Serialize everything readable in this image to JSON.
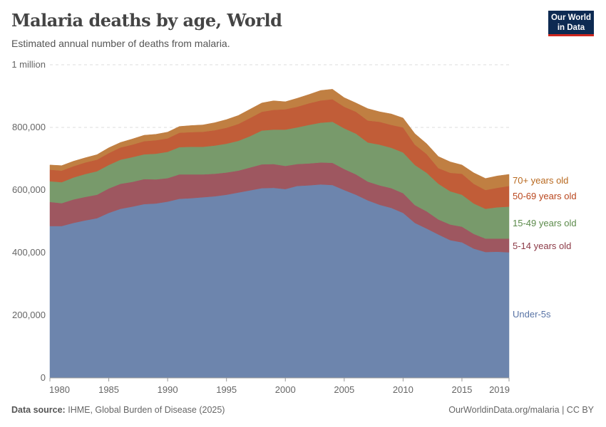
{
  "header": {
    "title": "Malaria deaths by age, World",
    "subtitle": "Estimated annual number of deaths from malaria."
  },
  "logo": {
    "line1": "Our World",
    "line2": "in Data",
    "bg": "#0d2a52",
    "accent": "#ce261e"
  },
  "footer": {
    "source_label": "Data source:",
    "source": "IHME, Global Burden of Disease (2025)",
    "credit": "OurWorldinData.org/malaria | CC BY"
  },
  "chart_data": {
    "type": "area",
    "stacked": true,
    "title": "Malaria deaths by age, World",
    "subtitle": "Estimated annual number of deaths from malaria.",
    "ylim": [
      0,
      1000000
    ],
    "y_ticks": [
      {
        "v": 0,
        "label": "0"
      },
      {
        "v": 200000,
        "label": "200,000"
      },
      {
        "v": 400000,
        "label": "400,000"
      },
      {
        "v": 600000,
        "label": "600,000"
      },
      {
        "v": 800000,
        "label": "800,000"
      },
      {
        "v": 1000000,
        "label": "1 million"
      }
    ],
    "x_ticks": [
      1980,
      1985,
      1990,
      1995,
      2000,
      2005,
      2010,
      2015,
      2019
    ],
    "grid": "horizontal dashed",
    "legend": "right, inline labels",
    "x": [
      1980,
      1981,
      1982,
      1983,
      1984,
      1985,
      1986,
      1987,
      1988,
      1989,
      1990,
      1991,
      1992,
      1993,
      1994,
      1995,
      1996,
      1997,
      1998,
      1999,
      2000,
      2001,
      2002,
      2003,
      2004,
      2005,
      2006,
      2007,
      2008,
      2009,
      2010,
      2011,
      2012,
      2013,
      2014,
      2015,
      2016,
      2017,
      2018,
      2019
    ],
    "series": [
      {
        "name": "Under-5s",
        "color": "#6d85ad",
        "label_color": "#5873a5",
        "values": [
          485000,
          485000,
          495000,
          503000,
          510000,
          527000,
          540000,
          547000,
          555000,
          557000,
          563000,
          572000,
          574000,
          577000,
          580000,
          585000,
          592000,
          599000,
          606000,
          607000,
          603000,
          613000,
          615000,
          618000,
          616000,
          600000,
          585000,
          567000,
          553000,
          543000,
          527000,
          495000,
          477000,
          458000,
          440000,
          433000,
          413000,
          402000,
          403000,
          401000
        ]
      },
      {
        "name": "5-14 years old",
        "color": "#9e5760",
        "label_color": "#8c3a47",
        "values": [
          77000,
          73000,
          75000,
          75000,
          75000,
          78000,
          80000,
          79000,
          80000,
          77000,
          75000,
          78000,
          76000,
          73000,
          72000,
          71000,
          70000,
          73000,
          76000,
          76000,
          74000,
          70000,
          70000,
          70000,
          71000,
          67000,
          65000,
          60000,
          62000,
          63000,
          63000,
          57000,
          55000,
          48000,
          50000,
          50000,
          47000,
          43000,
          42000,
          44000
        ]
      },
      {
        "name": "15-49 years old",
        "color": "#789a6b",
        "label_color": "#5b8a4a",
        "values": [
          66000,
          67000,
          70000,
          73000,
          75000,
          75000,
          77000,
          79000,
          79000,
          82000,
          84000,
          87000,
          88000,
          88000,
          90000,
          92000,
          95000,
          100000,
          108000,
          110000,
          116000,
          117000,
          123000,
          127000,
          131000,
          130000,
          130000,
          125000,
          130000,
          129000,
          130000,
          128000,
          123000,
          114000,
          106000,
          102000,
          97000,
          95000,
          100000,
          102000
        ]
      },
      {
        "name": "50-69 years old",
        "color": "#c15d38",
        "label_color": "#b9461d",
        "values": [
          37000,
          37000,
          36000,
          37000,
          37000,
          38000,
          39000,
          40000,
          42000,
          43000,
          43000,
          46000,
          47000,
          48000,
          49000,
          51000,
          54000,
          58000,
          60000,
          63000,
          65000,
          66000,
          69000,
          71000,
          72000,
          69000,
          70000,
          70000,
          73000,
          73000,
          80000,
          65000,
          60000,
          50000,
          59000,
          67000,
          63000,
          60000,
          62000,
          66000
        ]
      },
      {
        "name": "70+ years old",
        "color": "#c07f42",
        "label_color": "#b8691f",
        "values": [
          15000,
          16000,
          16000,
          15000,
          16000,
          17000,
          16000,
          18000,
          19000,
          19000,
          20000,
          20000,
          21000,
          22000,
          24000,
          26000,
          27000,
          28000,
          28000,
          29000,
          24000,
          27000,
          28000,
          32000,
          32000,
          29000,
          28000,
          38000,
          32000,
          35000,
          30000,
          35000,
          33000,
          37000,
          35000,
          28000,
          35000,
          37000,
          38000,
          37000
        ]
      }
    ]
  }
}
